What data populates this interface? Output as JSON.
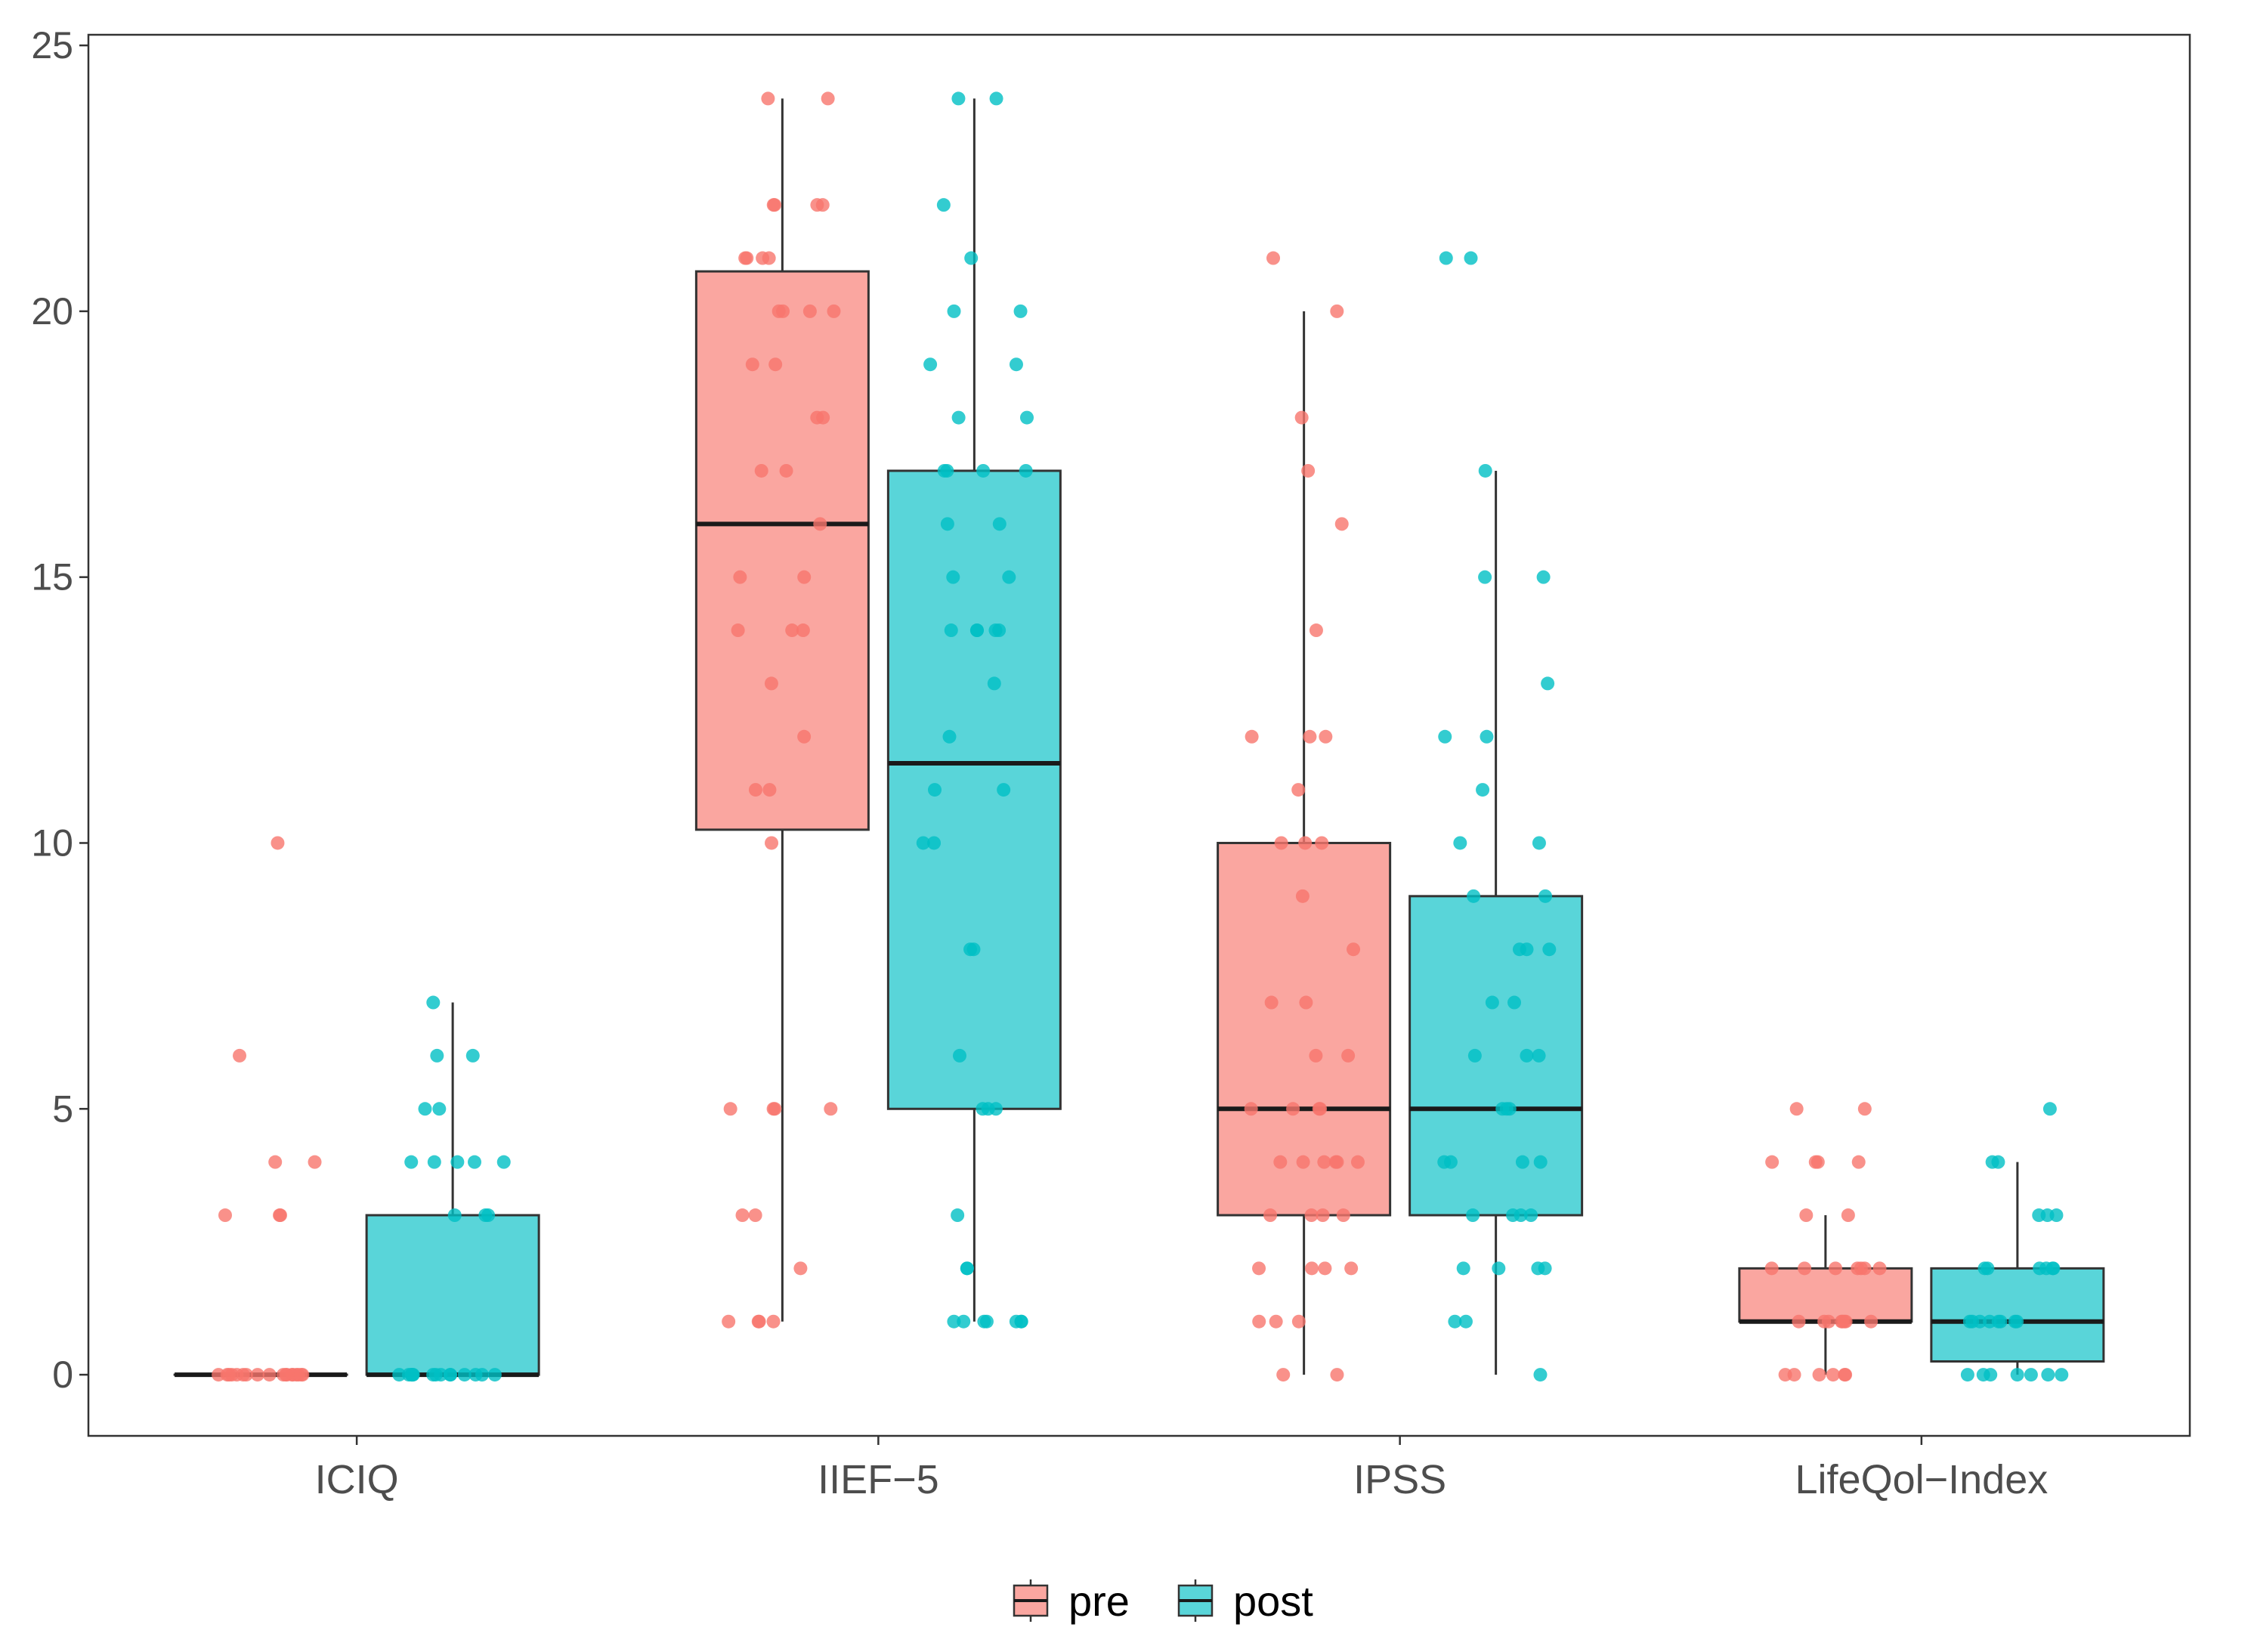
{
  "chart_data": {
    "type": "boxplot",
    "title": "",
    "xlabel": "",
    "ylabel": "",
    "ylim": [
      -1.15,
      25.2
    ],
    "yticks": [
      0,
      5,
      10,
      15,
      20,
      25
    ],
    "ytick_labels": [
      "0",
      "5",
      "10",
      "15",
      "20",
      "25"
    ],
    "categories": [
      "ICIQ",
      "IIEF−5",
      "IPSS",
      "LifeQol−Index"
    ],
    "legend": {
      "placement": "bottom",
      "entries": [
        "pre",
        "post"
      ]
    },
    "series": [
      {
        "name": "pre",
        "color": "#F8766D",
        "boxes": [
          {
            "min": 0,
            "q1": 0,
            "median": 0,
            "q3": 0,
            "max": 0,
            "points": [
              10,
              6,
              4,
              4,
              3,
              3,
              3,
              0,
              0,
              0,
              0,
              0,
              0,
              0,
              0,
              0,
              0,
              0,
              0,
              0,
              0,
              0,
              0,
              0,
              0
            ]
          },
          {
            "min": 1,
            "q1": 10.25,
            "median": 16,
            "q3": 20.75,
            "max": 24,
            "points": [
              24,
              24,
              22,
              22,
              22,
              22,
              21,
              21,
              21,
              21,
              20,
              20,
              20,
              20,
              19,
              19,
              18,
              18,
              17,
              17,
              16,
              15,
              15,
              14,
              14,
              14,
              13,
              12,
              11,
              11,
              10,
              5,
              5,
              5,
              5,
              3,
              3,
              2,
              1,
              1,
              1,
              1
            ]
          },
          {
            "min": 0,
            "q1": 3,
            "median": 5,
            "q3": 10,
            "max": 20,
            "points": [
              21,
              20,
              18,
              17,
              16,
              14,
              12,
              12,
              12,
              11,
              10,
              10,
              10,
              9,
              8,
              7,
              7,
              6,
              6,
              5,
              5,
              5,
              5,
              4,
              4,
              4,
              4,
              4,
              4,
              3,
              3,
              3,
              3,
              2,
              2,
              2,
              2,
              1,
              1,
              1,
              0,
              0
            ]
          },
          {
            "min": 0,
            "q1": 1,
            "median": 1,
            "q3": 2,
            "max": 3,
            "points": [
              5,
              5,
              4,
              4,
              4,
              4,
              3,
              3,
              2,
              2,
              2,
              2,
              2,
              2,
              2,
              1,
              1,
              1,
              1,
              1,
              1,
              1,
              1,
              0,
              0,
              0,
              0,
              0,
              0
            ]
          }
        ]
      },
      {
        "name": "post",
        "color": "#00BFC4",
        "boxes": [
          {
            "min": 0,
            "q1": 0,
            "median": 0,
            "q3": 3,
            "max": 7,
            "points": [
              7,
              6,
              6,
              5,
              5,
              4,
              4,
              4,
              4,
              4,
              3,
              3,
              3,
              0,
              0,
              0,
              0,
              0,
              0,
              0,
              0,
              0,
              0,
              0,
              0,
              0,
              0,
              0
            ]
          },
          {
            "min": 1,
            "q1": 5,
            "median": 11.5,
            "q3": 17,
            "max": 24,
            "points": [
              24,
              24,
              22,
              21,
              20,
              20,
              19,
              19,
              18,
              18,
              17,
              17,
              17,
              17,
              16,
              16,
              15,
              15,
              14,
              14,
              14,
              14,
              14,
              13,
              12,
              11,
              11,
              10,
              10,
              8,
              8,
              6,
              5,
              5,
              5,
              3,
              2,
              2,
              1,
              1,
              1,
              1,
              1,
              1,
              1
            ]
          },
          {
            "min": 0,
            "q1": 3,
            "median": 5,
            "q3": 9,
            "max": 17,
            "points": [
              21,
              21,
              17,
              15,
              15,
              13,
              12,
              12,
              11,
              10,
              10,
              9,
              9,
              8,
              8,
              8,
              7,
              7,
              6,
              6,
              6,
              5,
              5,
              5,
              4,
              4,
              4,
              4,
              3,
              3,
              3,
              3,
              2,
              2,
              2,
              2,
              1,
              1,
              0
            ]
          },
          {
            "min": 0,
            "q1": 0.25,
            "median": 1,
            "q3": 2,
            "max": 4,
            "points": [
              5,
              4,
              4,
              3,
              3,
              3,
              2,
              2,
              2,
              2,
              2,
              2,
              1,
              1,
              1,
              1,
              1,
              1,
              1,
              1,
              0,
              0,
              0,
              0,
              0,
              0,
              0
            ]
          }
        ]
      }
    ]
  }
}
